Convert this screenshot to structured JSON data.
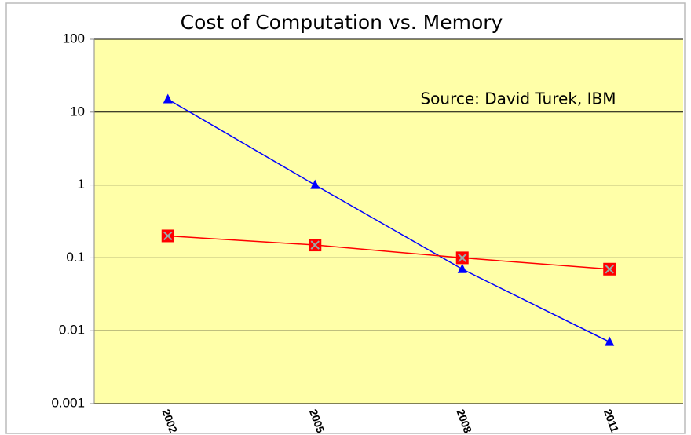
{
  "chart_data": {
    "type": "line",
    "title": "Cost of Computation vs. Memory",
    "annotation": "Source: David Turek, IBM",
    "categories": [
      "2002",
      "2005",
      "2008",
      "2011"
    ],
    "series": [
      {
        "color": "#0000ff",
        "marker": "triangle",
        "values": [
          15,
          1,
          0.07,
          0.007
        ]
      },
      {
        "color": "#ff0000",
        "marker": "square-x",
        "values": [
          0.2,
          0.15,
          0.1,
          0.07
        ]
      }
    ],
    "ylim": [
      0.001,
      100
    ],
    "yticks": [
      0.001,
      0.01,
      0.1,
      1,
      10,
      100
    ],
    "log_y": true,
    "grid": true,
    "background": "#ffffa8"
  }
}
